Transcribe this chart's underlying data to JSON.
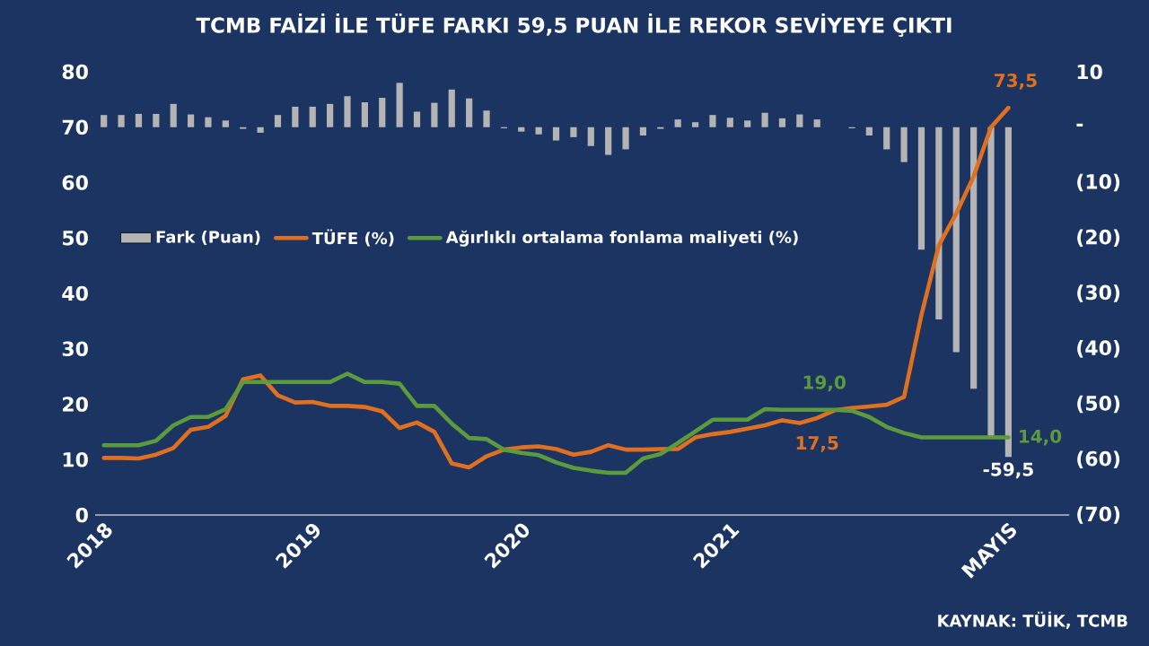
{
  "chart_data": {
    "type": "line",
    "title": "TCMB FAİZİ İLE TÜFE FARKI 59,5 PUAN İLE REKOR SEVİYEYE ÇIKTI",
    "categories": [
      "2018",
      null,
      null,
      null,
      null,
      null,
      null,
      null,
      null,
      null,
      null,
      null,
      "2019",
      null,
      null,
      null,
      null,
      null,
      null,
      null,
      null,
      null,
      null,
      null,
      "2020",
      null,
      null,
      null,
      null,
      null,
      null,
      null,
      null,
      null,
      null,
      null,
      "2021",
      null,
      null,
      null,
      null,
      null,
      null,
      null,
      null,
      null,
      null,
      null,
      null,
      null,
      null,
      null,
      "MAYIS"
    ],
    "series": [
      {
        "name": "Fark (Puan)",
        "type": "bar",
        "axis": "y2",
        "color": "#b4b4b4",
        "values": [
          2.2,
          2.2,
          2.4,
          2.4,
          4.2,
          2.3,
          1.8,
          1.2,
          -0.3,
          -1.0,
          2.2,
          3.7,
          3.7,
          4.2,
          5.6,
          4.5,
          5.3,
          8.0,
          2.8,
          4.4,
          6.8,
          5.2,
          3.0,
          -0.2,
          -0.8,
          -1.3,
          -2.4,
          -1.8,
          -3.4,
          -5.0,
          -4.0,
          -1.5,
          -0.3,
          1.4,
          0.9,
          2.2,
          1.7,
          1.2,
          2.6,
          1.6,
          2.3,
          1.4,
          0,
          -0.2,
          -1.5,
          -4.0,
          -6.3,
          -22.1,
          -34.7,
          -40.6,
          -47.2,
          -56.1,
          -59.5
        ],
        "value_labels": [
          null,
          null,
          null,
          null,
          null,
          null,
          null,
          null,
          null,
          null,
          null,
          null,
          null,
          null,
          null,
          null,
          null,
          null,
          null,
          null,
          null,
          null,
          null,
          null,
          null,
          null,
          null,
          null,
          null,
          null,
          null,
          null,
          null,
          null,
          null,
          null,
          null,
          null,
          null,
          null,
          null,
          null,
          null,
          null,
          null,
          null,
          null,
          null,
          null,
          null,
          null,
          null,
          "-59,5"
        ]
      },
      {
        "name": "TÜFE (%)",
        "color": "#e0701f",
        "values": [
          10.3,
          10.3,
          10.2,
          10.9,
          12.1,
          15.4,
          15.9,
          17.9,
          24.5,
          25.2,
          21.6,
          20.3,
          20.4,
          19.7,
          19.7,
          19.5,
          18.7,
          15.7,
          16.7,
          15.0,
          9.3,
          8.6,
          10.6,
          11.8,
          12.2,
          12.4,
          11.9,
          10.9,
          11.4,
          12.6,
          11.8,
          11.8,
          11.9,
          11.9,
          14.0,
          14.6,
          15.0,
          15.6,
          16.2,
          17.1,
          16.6,
          17.5,
          18.9,
          19.3,
          19.6,
          19.9,
          21.3,
          36.1,
          48.7,
          54.4,
          61.1,
          70.0,
          73.5
        ],
        "value_labels": [
          null,
          null,
          null,
          null,
          null,
          null,
          null,
          null,
          null,
          null,
          null,
          null,
          null,
          null,
          null,
          null,
          null,
          null,
          null,
          null,
          null,
          null,
          null,
          null,
          null,
          null,
          null,
          null,
          null,
          null,
          null,
          null,
          null,
          null,
          null,
          null,
          null,
          null,
          null,
          null,
          null,
          "17,5",
          null,
          null,
          null,
          null,
          null,
          null,
          null,
          null,
          null,
          null,
          "73,5"
        ]
      },
      {
        "name": "Ağırlıklı ortalama fonlama maliyeti (%)",
        "color": "#5b9b3c",
        "values": [
          12.6,
          12.6,
          12.6,
          13.4,
          16.2,
          17.7,
          17.7,
          19.1,
          24.0,
          24.0,
          24.0,
          24.0,
          24.0,
          24.0,
          25.5,
          24.0,
          24.0,
          23.7,
          19.7,
          19.7,
          16.5,
          13.9,
          13.7,
          11.8,
          11.2,
          10.8,
          9.5,
          8.5,
          8.0,
          7.6,
          7.6,
          10.2,
          11.0,
          13.0,
          15.1,
          17.2,
          17.2,
          17.2,
          19.1,
          19.0,
          19.0,
          19.0,
          19.0,
          18.8,
          17.7,
          15.9,
          14.8,
          14.0,
          14.0,
          14.0,
          14.0,
          14.0,
          14.0
        ],
        "value_labels": [
          null,
          null,
          null,
          null,
          null,
          null,
          null,
          null,
          null,
          null,
          null,
          null,
          null,
          null,
          null,
          null,
          null,
          null,
          null,
          null,
          null,
          null,
          null,
          null,
          null,
          null,
          null,
          null,
          null,
          null,
          null,
          null,
          null,
          null,
          null,
          null,
          null,
          null,
          null,
          null,
          null,
          "19,0",
          null,
          null,
          null,
          null,
          null,
          null,
          null,
          null,
          null,
          null,
          "14,0"
        ]
      }
    ],
    "ylim": [
      0,
      80
    ],
    "yticks": [
      0,
      10,
      20,
      30,
      40,
      50,
      60,
      70,
      80
    ],
    "y2lim": [
      -70,
      10
    ],
    "y2ticks": [
      10,
      {
        "value": 0,
        "label": "-"
      },
      {
        "value": -10,
        "label": "(10)"
      },
      {
        "value": -20,
        "label": "(20)"
      },
      {
        "value": -30,
        "label": "(30)"
      },
      {
        "value": -40,
        "label": "(40)"
      },
      {
        "value": -50,
        "label": "(50)"
      },
      {
        "value": -60,
        "label": "(60)"
      },
      {
        "value": -70,
        "label": "(70)"
      }
    ],
    "legend": "left",
    "annotations": [
      "KAYNAK: TÜİK, TCMB"
    ]
  }
}
